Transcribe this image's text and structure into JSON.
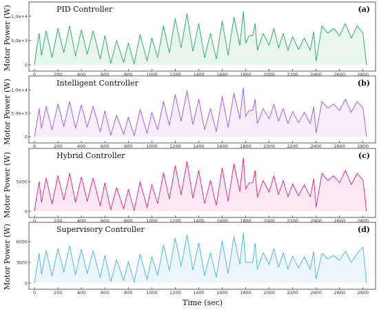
{
  "figure": {
    "xlabel": "Time (sec)",
    "ylabel": "Motor Power (W)"
  },
  "chart_data": [
    {
      "type": "line",
      "title": "PID Controller",
      "tag": "(a)",
      "color": "#22a55a",
      "xlim": [
        0,
        2860
      ],
      "ylim": [
        0,
        11200
      ],
      "x_ticks": [
        0,
        200,
        400,
        600,
        800,
        1000,
        1200,
        1400,
        1600,
        1800,
        2000,
        2200,
        2400,
        2600,
        2800
      ],
      "y_ticks": [
        0,
        5000,
        10000
      ],
      "y_tick_labels": [
        "0",
        "5.0e+3",
        "1.0e+4"
      ],
      "grid": false,
      "series": [
        {
          "x": [
            0,
            20,
            40,
            60,
            100,
            150,
            200,
            250,
            300,
            350,
            400,
            450,
            500,
            560,
            600,
            650,
            700,
            760,
            800,
            850,
            900,
            960,
            1000,
            1050,
            1100,
            1150,
            1200,
            1250,
            1300,
            1350,
            1400,
            1450,
            1500,
            1550,
            1600,
            1650,
            1700,
            1750,
            1780,
            1800,
            1830,
            1860,
            1880,
            1900,
            1950,
            2000,
            2040,
            2080,
            2120,
            2160,
            2200,
            2250,
            2300,
            2350,
            2380,
            2400,
            2450,
            2500,
            2550,
            2600,
            2650,
            2700,
            2750,
            2800,
            2830
          ],
          "y": [
            0,
            3500,
            6500,
            2000,
            7000,
            1500,
            7500,
            2500,
            8000,
            1800,
            7200,
            2200,
            7000,
            1200,
            6000,
            300,
            5000,
            500,
            4500,
            200,
            6200,
            800,
            5500,
            1500,
            8000,
            2500,
            9500,
            3500,
            10500,
            2800,
            8500,
            1500,
            6500,
            1200,
            9000,
            2000,
            9800,
            4000,
            11000,
            4500,
            6000,
            6000,
            8500,
            3000,
            6500,
            4000,
            7500,
            3500,
            6500,
            3000,
            5800,
            3200,
            5500,
            3000,
            6800,
            800,
            8000,
            6500,
            7500,
            6000,
            8500,
            5500,
            8000,
            6500,
            0
          ]
        }
      ]
    },
    {
      "type": "line",
      "title": "Intelligent Controller",
      "tag": "(b)",
      "color": "#a24fe8",
      "xlim": [
        0,
        2860
      ],
      "ylim": [
        0,
        11200
      ],
      "x_ticks": [
        0,
        200,
        400,
        600,
        800,
        1000,
        1200,
        1400,
        1600,
        1800,
        2000,
        2200,
        2400,
        2600,
        2800
      ],
      "y_ticks": [
        0,
        5000,
        10000
      ],
      "y_tick_labels": [
        "0",
        "5.0e+3",
        "1.0e+4"
      ],
      "grid": false,
      "series": [
        {
          "x": [
            0,
            20,
            40,
            60,
            100,
            150,
            200,
            250,
            300,
            350,
            400,
            450,
            500,
            560,
            600,
            650,
            700,
            760,
            800,
            850,
            900,
            960,
            1000,
            1050,
            1100,
            1150,
            1200,
            1250,
            1300,
            1350,
            1400,
            1450,
            1500,
            1550,
            1600,
            1650,
            1700,
            1750,
            1780,
            1800,
            1830,
            1860,
            1880,
            1900,
            1950,
            2000,
            2040,
            2080,
            2120,
            2160,
            2200,
            2250,
            2300,
            2350,
            2380,
            2400,
            2450,
            2500,
            2550,
            2600,
            2650,
            2700,
            2750,
            2800,
            2830
          ],
          "y": [
            0,
            3000,
            6000,
            1800,
            6500,
            1500,
            7000,
            2200,
            7500,
            1800,
            6800,
            2000,
            6500,
            1000,
            5500,
            300,
            4600,
            500,
            4200,
            200,
            5800,
            700,
            5200,
            1500,
            7500,
            2400,
            9000,
            3300,
            9800,
            2600,
            8000,
            1500,
            6000,
            1100,
            8600,
            2000,
            9300,
            3800,
            10500,
            4300,
            5600,
            5600,
            8000,
            2800,
            6000,
            3800,
            7000,
            3300,
            6000,
            2800,
            5400,
            3000,
            5200,
            2800,
            6400,
            800,
            7500,
            6100,
            7000,
            5600,
            8000,
            5200,
            7500,
            6100,
            0
          ]
        }
      ]
    },
    {
      "type": "line",
      "title": "Hybrid Controller",
      "tag": "(c)",
      "color": "#d81b8c",
      "xlim": [
        0,
        2860
      ],
      "ylim": [
        0,
        9200
      ],
      "x_ticks": [
        0,
        200,
        400,
        600,
        800,
        1000,
        1200,
        1400,
        1600,
        1800,
        2000,
        2200,
        2400,
        2600,
        2800
      ],
      "y_ticks": [
        0,
        5000
      ],
      "y_tick_labels": [
        "0",
        "5000"
      ],
      "grid": false,
      "series": [
        {
          "x": [
            0,
            20,
            40,
            60,
            100,
            150,
            200,
            250,
            300,
            350,
            400,
            450,
            500,
            560,
            600,
            650,
            700,
            760,
            800,
            850,
            900,
            960,
            1000,
            1050,
            1100,
            1150,
            1200,
            1250,
            1300,
            1350,
            1400,
            1450,
            1500,
            1550,
            1600,
            1650,
            1700,
            1750,
            1780,
            1800,
            1830,
            1860,
            1880,
            1900,
            1950,
            2000,
            2040,
            2080,
            2120,
            2160,
            2200,
            2250,
            2300,
            2350,
            2380,
            2400,
            2450,
            2500,
            2550,
            2600,
            2650,
            2700,
            2750,
            2800,
            2830
          ],
          "y": [
            0,
            2600,
            5000,
            1500,
            5600,
            1200,
            6000,
            1900,
            6400,
            1500,
            5800,
            1700,
            5600,
            900,
            4800,
            250,
            4000,
            400,
            3700,
            150,
            5000,
            600,
            4500,
            1300,
            6500,
            2100,
            7700,
            2800,
            8400,
            2200,
            6900,
            1300,
            5200,
            1000,
            7300,
            1700,
            8000,
            3300,
            9000,
            3700,
            4800,
            4800,
            6900,
            2400,
            5200,
            3200,
            6000,
            2800,
            5200,
            2400,
            4600,
            2600,
            4500,
            2400,
            5500,
            700,
            6400,
            5200,
            6000,
            4800,
            6900,
            4500,
            6400,
            5200,
            0
          ]
        }
      ]
    },
    {
      "type": "line",
      "title": "Supervisory Controller",
      "tag": "(d)",
      "color": "#45aeea",
      "xlim": [
        0,
        2860
      ],
      "ylim": [
        0,
        7600
      ],
      "x_ticks": [
        0,
        200,
        400,
        600,
        800,
        1000,
        1200,
        1400,
        1600,
        1800,
        2000,
        2200,
        2400,
        2600,
        2800
      ],
      "y_ticks": [
        0,
        3000,
        6000
      ],
      "y_tick_labels": [
        "0",
        "3000",
        "6000"
      ],
      "grid": false,
      "series": [
        {
          "x": [
            0,
            20,
            40,
            60,
            100,
            150,
            200,
            250,
            300,
            350,
            400,
            450,
            500,
            560,
            600,
            650,
            700,
            760,
            800,
            850,
            900,
            960,
            1000,
            1050,
            1100,
            1150,
            1200,
            1250,
            1300,
            1350,
            1400,
            1450,
            1500,
            1550,
            1600,
            1650,
            1700,
            1750,
            1780,
            1800,
            1830,
            1860,
            1880,
            1900,
            1950,
            2000,
            2040,
            2080,
            2120,
            2160,
            2200,
            2250,
            2300,
            2350,
            2380,
            2400,
            2450,
            2500,
            2550,
            2600,
            2650,
            2700,
            2750,
            2800,
            2830
          ],
          "y": [
            0,
            2200,
            4300,
            1300,
            4700,
            1000,
            5000,
            1600,
            5400,
            1200,
            4900,
            1400,
            4700,
            800,
            4000,
            200,
            3400,
            350,
            3100,
            150,
            4200,
            500,
            3800,
            1100,
            5500,
            1800,
            6500,
            2400,
            7000,
            1900,
            5800,
            1100,
            4400,
            800,
            6100,
            1400,
            6700,
            2700,
            7300,
            3000,
            3000,
            3000,
            5800,
            2000,
            4400,
            2700,
            5000,
            2300,
            4400,
            2000,
            3900,
            2200,
            3800,
            2000,
            4600,
            600,
            4300,
            3500,
            4000,
            3300,
            4600,
            3000,
            4300,
            5200,
            0
          ]
        }
      ]
    }
  ]
}
